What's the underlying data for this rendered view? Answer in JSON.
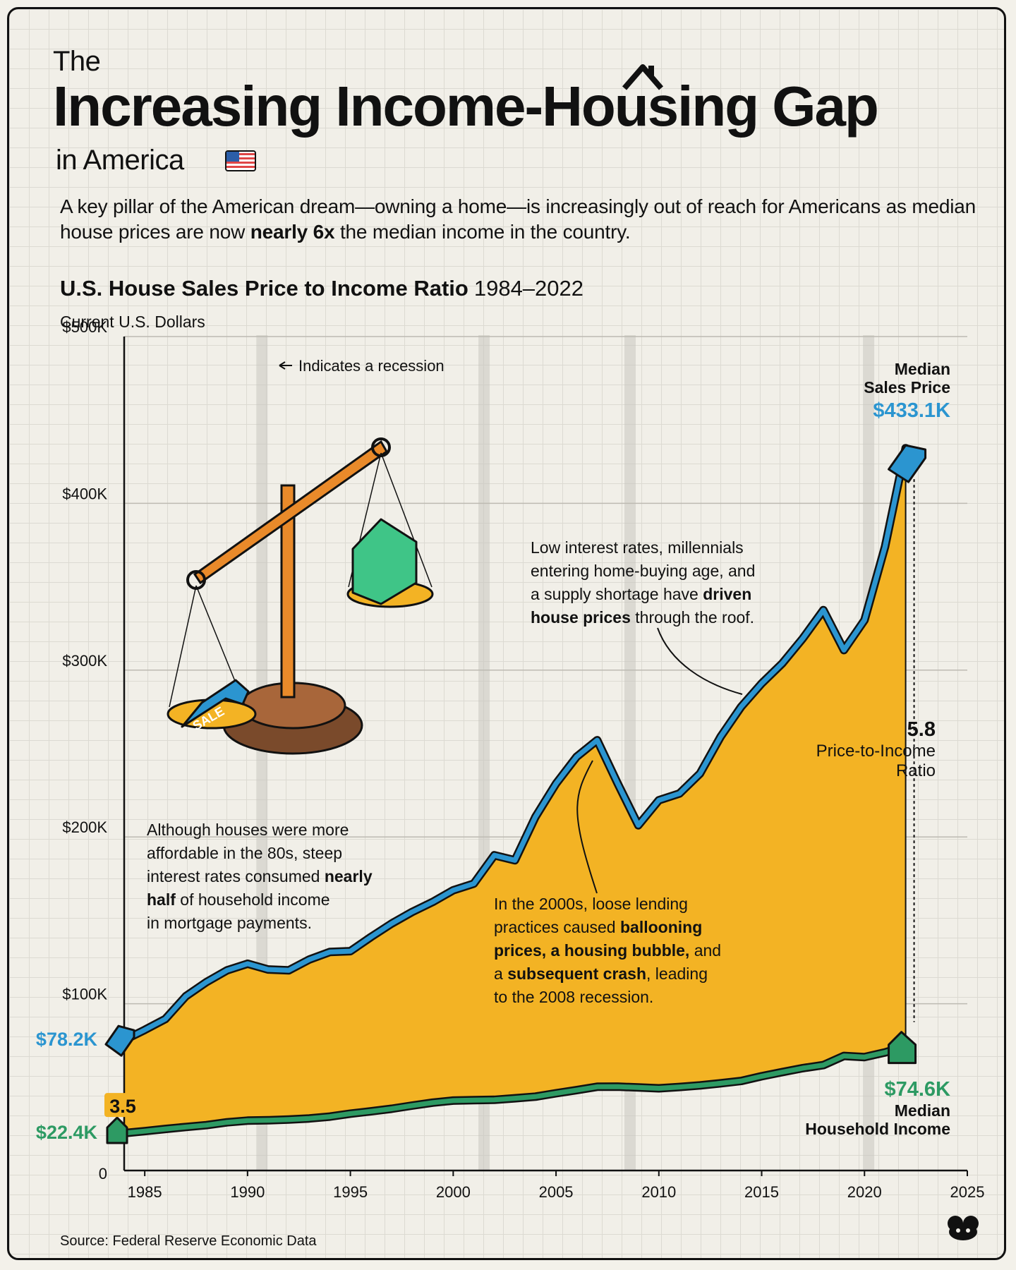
{
  "header": {
    "title_the": "The",
    "title_main": "Increasing Income-Housing Gap",
    "title_sub": "in America",
    "intro_part1": "A key pillar of the American dream—owning a home—is increasingly out of reach for Americans as median house prices are now ",
    "intro_bold": "nearly 6x",
    "intro_part2": " the median income in the country."
  },
  "chart_data": {
    "type": "area",
    "title": "U.S. House Sales Price to Income Ratio",
    "title_years": "1984–2022",
    "ylabel": "Current U.S. Dollars",
    "x_ticks": [
      "1985",
      "1990",
      "1995",
      "2000",
      "2005",
      "2010",
      "2015",
      "2020",
      "2025"
    ],
    "y_ticks": [
      "0",
      "$100K",
      "$200K",
      "$300K",
      "$400K",
      "$500K"
    ],
    "xlim": [
      1984,
      2025
    ],
    "ylim": [
      0,
      500000
    ],
    "recessions": [
      1990.7,
      2001.5,
      2008.6,
      2020.2
    ],
    "series": [
      {
        "name": "Median Sales Price",
        "color": "#2b95d0",
        "x": [
          1984,
          1985,
          1986,
          1987,
          1988,
          1989,
          1990,
          1991,
          1992,
          1993,
          1994,
          1995,
          1996,
          1997,
          1998,
          1999,
          2000,
          2001,
          2002,
          2003,
          2004,
          2005,
          2006,
          2007,
          2008,
          2009,
          2010,
          2011,
          2012,
          2013,
          2014,
          2015,
          2016,
          2017,
          2018,
          2019,
          2020,
          2021,
          2022
        ],
        "values": [
          78200,
          84300,
          90800,
          104500,
          113000,
          120000,
          124000,
          120500,
          120000,
          126500,
          131000,
          131500,
          140000,
          148000,
          155000,
          161000,
          168000,
          172000,
          189000,
          186000,
          212000,
          232000,
          248000,
          258000,
          232000,
          207000,
          222000,
          226000,
          238000,
          260000,
          278000,
          292000,
          304000,
          319000,
          336000,
          312000,
          330000,
          374000,
          433100
        ]
      },
      {
        "name": "Median Household Income",
        "color": "#2d9a63",
        "x": [
          1984,
          1985,
          1986,
          1987,
          1988,
          1989,
          1990,
          1991,
          1992,
          1993,
          1994,
          1995,
          1996,
          1997,
          1998,
          1999,
          2000,
          2001,
          2002,
          2003,
          2004,
          2005,
          2006,
          2007,
          2008,
          2009,
          2010,
          2011,
          2012,
          2013,
          2014,
          2015,
          2016,
          2017,
          2018,
          2019,
          2020,
          2021,
          2022
        ],
        "values": [
          22400,
          23600,
          24900,
          26100,
          27200,
          28900,
          29900,
          30100,
          30600,
          31200,
          32300,
          34100,
          35500,
          37000,
          38900,
          40700,
          41900,
          42200,
          42400,
          43300,
          44300,
          46300,
          48200,
          50200,
          50300,
          49800,
          49300,
          50100,
          51000,
          52300,
          53700,
          56500,
          59000,
          61400,
          63200,
          68700,
          68000,
          70800,
          74600
        ]
      }
    ],
    "annotations": {
      "recession_label": "Indicates a recession",
      "start_price": "$78.2K",
      "start_income": "$22.4K",
      "start_ratio": "3.5",
      "end_price": "$433.1K",
      "end_income": "$74.6K",
      "end_ratio": "5.8",
      "end_price_name_1": "Median",
      "end_price_name_2": "Sales Price",
      "end_income_name_1": "Median",
      "end_income_name_2": "Household Income",
      "end_ratio_name_1": "Price-to-Income",
      "end_ratio_name_2": "Ratio",
      "note_80s": [
        "Although houses were more",
        "affordable in the 80s, steep",
        "interest rates consumed |nearly|",
        "|half| of household income",
        "in mortgage payments."
      ],
      "note_2000s": [
        "In the 2000s, loose lending",
        "practices caused |ballooning|",
        "|prices, a housing bubble,| and",
        "a |subsequent crash|, leading",
        "to the 2008 recession."
      ],
      "note_recent": [
        "Low interest rates, millennials",
        "entering home-buying age, and",
        "a supply shortage have |driven|",
        "|house prices| through the roof."
      ],
      "sale_tag": "SALE"
    },
    "colors": {
      "fill": "#f3b324",
      "price_line": "#2b95d0",
      "income_line": "#2d9a63",
      "ratio_text": "#111111"
    }
  },
  "footer": {
    "source": "Source: Federal Reserve Economic Data"
  }
}
